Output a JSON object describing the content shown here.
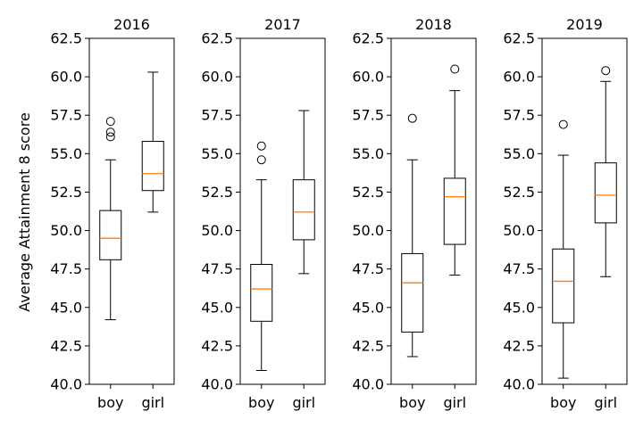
{
  "chart_data": {
    "type": "box",
    "ylabel": "Average Attainment 8 score",
    "ylim": [
      40.0,
      62.5
    ],
    "yticks": [
      "40.0",
      "42.5",
      "45.0",
      "47.5",
      "50.0",
      "52.5",
      "55.0",
      "57.5",
      "60.0",
      "62.5"
    ],
    "categories": [
      "boy",
      "girl"
    ],
    "colors": {
      "box": "#000000",
      "median": "#ff7f0e",
      "background": "#ffffff"
    },
    "panels": [
      {
        "title": "2016",
        "boxes": [
          {
            "category": "boy",
            "whisker_low": 44.2,
            "q1": 48.1,
            "median": 49.5,
            "q3": 51.3,
            "whisker_high": 54.6,
            "fliers": [
              56.1,
              56.4,
              57.1
            ]
          },
          {
            "category": "girl",
            "whisker_low": 51.2,
            "q1": 52.6,
            "median": 53.7,
            "q3": 55.8,
            "whisker_high": 60.3,
            "fliers": []
          }
        ]
      },
      {
        "title": "2017",
        "boxes": [
          {
            "category": "boy",
            "whisker_low": 40.9,
            "q1": 44.1,
            "median": 46.2,
            "q3": 47.8,
            "whisker_high": 53.3,
            "fliers": [
              54.6,
              55.5
            ]
          },
          {
            "category": "girl",
            "whisker_low": 47.2,
            "q1": 49.4,
            "median": 51.2,
            "q3": 53.3,
            "whisker_high": 57.8,
            "fliers": []
          }
        ]
      },
      {
        "title": "2018",
        "boxes": [
          {
            "category": "boy",
            "whisker_low": 41.8,
            "q1": 43.4,
            "median": 46.6,
            "q3": 48.5,
            "whisker_high": 54.6,
            "fliers": [
              57.3
            ]
          },
          {
            "category": "girl",
            "whisker_low": 47.1,
            "q1": 49.1,
            "median": 52.2,
            "q3": 53.4,
            "whisker_high": 59.1,
            "fliers": [
              60.5
            ]
          }
        ]
      },
      {
        "title": "2019",
        "boxes": [
          {
            "category": "boy",
            "whisker_low": 40.4,
            "q1": 44.0,
            "median": 46.7,
            "q3": 48.8,
            "whisker_high": 54.9,
            "fliers": [
              56.9
            ]
          },
          {
            "category": "girl",
            "whisker_low": 47.0,
            "q1": 50.5,
            "median": 52.3,
            "q3": 54.4,
            "whisker_high": 59.7,
            "fliers": [
              60.4
            ]
          }
        ]
      }
    ]
  }
}
